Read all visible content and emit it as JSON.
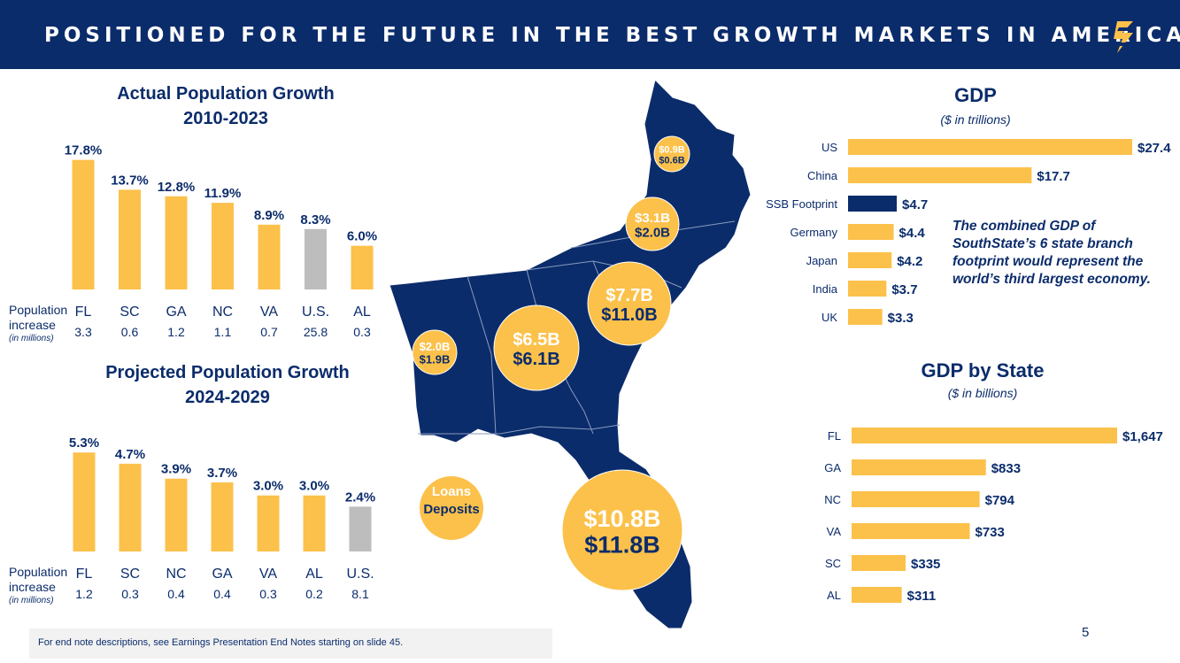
{
  "header": {
    "title": "POSITIONED FOR THE FUTURE IN THE BEST GROWTH MARKETS IN AMERICA",
    "logo_icon": "southstate-s-logo"
  },
  "colors": {
    "navy": "#0b2c6b",
    "gold": "#fcc14a",
    "gray": "#bdbdbd"
  },
  "actual_population": {
    "title_line1": "Actual Population Growth",
    "title_line2": "2010-2023",
    "row_label_line1": "Population",
    "row_label_line2": "increase",
    "row_label_note": "(in millions)"
  },
  "projected_population": {
    "title_line1": "Projected Population Growth",
    "title_line2": "2024-2029",
    "row_label_line1": "Population",
    "row_label_line2": "increase",
    "row_label_note": "(in millions)"
  },
  "gdp": {
    "title": "GDP",
    "subtitle": "($ in trillions)",
    "note": "The combined GDP of SouthState’s 6 state branch footprint would represent the world’s third largest economy."
  },
  "gdp_state": {
    "title": "GDP by State",
    "subtitle": "($ in billions)"
  },
  "map": {
    "legend_line1": "Loans",
    "legend_line2": "Deposits",
    "bubbles": [
      {
        "state": "VA",
        "loans": "$0.9B",
        "deposits": "$0.6B"
      },
      {
        "state": "NC",
        "loans": "$3.1B",
        "deposits": "$2.0B"
      },
      {
        "state": "SC",
        "loans": "$7.7B",
        "deposits": "$11.0B"
      },
      {
        "state": "GA",
        "loans": "$6.5B",
        "deposits": "$6.1B"
      },
      {
        "state": "AL",
        "loans": "$2.0B",
        "deposits": "$1.9B"
      },
      {
        "state": "FL",
        "loans": "$10.8B",
        "deposits": "$11.8B"
      }
    ]
  },
  "chart_data": [
    {
      "type": "bar",
      "title": "Actual Population Growth 2010-2023",
      "categories": [
        "FL",
        "SC",
        "GA",
        "NC",
        "VA",
        "U.S.",
        "AL"
      ],
      "values": [
        17.8,
        13.7,
        12.8,
        11.9,
        8.9,
        8.3,
        6.0
      ],
      "labels": [
        "17.8%",
        "13.7%",
        "12.8%",
        "11.9%",
        "8.9%",
        "8.3%",
        "6.0%"
      ],
      "population_increase": [
        "3.3",
        "0.6",
        "1.2",
        "1.1",
        "0.7",
        "25.8",
        "0.3"
      ],
      "highlight": "U.S.",
      "ylim": [
        0,
        18
      ]
    },
    {
      "type": "bar",
      "title": "Projected Population Growth 2024-2029",
      "categories": [
        "FL",
        "SC",
        "NC",
        "GA",
        "VA",
        "AL",
        "U.S."
      ],
      "values": [
        5.3,
        4.7,
        3.9,
        3.7,
        3.0,
        3.0,
        2.4
      ],
      "labels": [
        "5.3%",
        "4.7%",
        "3.9%",
        "3.7%",
        "3.0%",
        "3.0%",
        "2.4%"
      ],
      "population_increase": [
        "1.2",
        "0.3",
        "0.4",
        "0.4",
        "0.3",
        "0.2",
        "8.1"
      ],
      "highlight": "U.S.",
      "ylim": [
        0,
        5.5
      ]
    },
    {
      "type": "bar",
      "orientation": "horizontal",
      "title": "GDP",
      "subtitle": "($ in trillions)",
      "categories": [
        "US",
        "China",
        "SSB Footprint",
        "Germany",
        "Japan",
        "India",
        "UK"
      ],
      "values": [
        27.4,
        17.7,
        4.7,
        4.4,
        4.2,
        3.7,
        3.3
      ],
      "labels": [
        "$27.4",
        "$17.7",
        "$4.7",
        "$4.4",
        "$4.2",
        "$3.7",
        "$3.3"
      ],
      "highlight": "SSB Footprint",
      "xlim": [
        0,
        27.4
      ]
    },
    {
      "type": "bar",
      "orientation": "horizontal",
      "title": "GDP by State",
      "subtitle": "($ in billions)",
      "categories": [
        "FL",
        "GA",
        "NC",
        "VA",
        "SC",
        "AL"
      ],
      "values": [
        1647,
        833,
        794,
        733,
        335,
        311
      ],
      "labels": [
        "$1,647",
        "$833",
        "$794",
        "$733",
        "$335",
        "$311"
      ],
      "xlim": [
        0,
        1647
      ]
    }
  ],
  "footer": {
    "note": "For end note descriptions, see Earnings Presentation End Notes starting on slide 45.",
    "page_number": "5"
  }
}
